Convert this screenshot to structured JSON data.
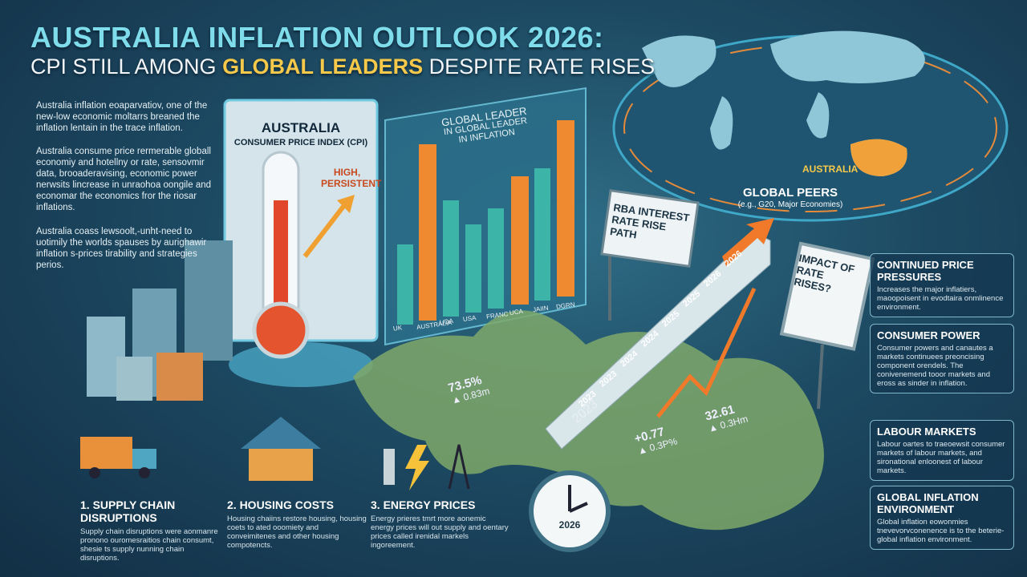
{
  "header": {
    "title": "AUSTRALIA INFLATION OUTLOOK 2026:",
    "subtitle_parts": [
      "CPI STILL AMONG ",
      "GLOBAL LEADERS",
      " DESPITE RATE RISES"
    ]
  },
  "intro": [
    "Australia inflation eoaparvatiov, one of the new-low economic moltarrs breaned the inflation lentain in the trace inflation.",
    "Australia consume price rermerable globall economiy and hotellny or rate, sensovmir data, brooaderavising, economic power nerwsits lincrease in unraohoa oongile and economar the economics fror the riosar inflations.",
    "Australia coass lewsoolt,-unht-need to uotimily the worlds spauses by aurighawir inflation s-prices tirability and strategies perios."
  ],
  "thermometer": {
    "title": "AUSTRALIA",
    "subtitle": "CONSUMER PRICE INDEX (CPI)",
    "note": "HIGH, PERSISTENT"
  },
  "leaders": {
    "title": [
      "GLOBAL LEADER",
      "IN GLOBAL LEADER",
      "IN INFLATION"
    ],
    "countries": [
      "UK",
      "AUSTRALIA",
      "UDA",
      "USA",
      "FRANC",
      "UCA",
      "JAIIN",
      "DGRN"
    ]
  },
  "world": {
    "label": "AUSTRALIA",
    "peers": "GLOBAL PEERS",
    "peers_note": "(e.g., G20, Major Economies)"
  },
  "rba": {
    "sign": "RBA INTEREST RATE RISE PATH",
    "steps": [
      "2023",
      "2023",
      "2024",
      "2024",
      "2025",
      "2025",
      "2026",
      "2026"
    ],
    "side_year": "2023"
  },
  "map_stats": [
    {
      "value": "73.5%",
      "change": "▲ 0.83m"
    },
    {
      "value": "32.61",
      "change": "▲ 0.3Hm"
    },
    {
      "value": "+0.77",
      "change": "▲ 0.3P%"
    }
  ],
  "impact_sign": "IMPACT OF RATE RISES?",
  "clock": "2026",
  "factors": [
    {
      "title": "CONTINUED PRICE PRESSURES",
      "text": "Increases the major inflatiers, maoopoisent in evodtaira onmlinence environment."
    },
    {
      "title": "CONSUMER POWER",
      "text": "Consumer powers and canautes a markets continuees preoncising component orendels. The conivenemend tooor markets and eross as sinder in inflation."
    },
    {
      "title": "LABOUR MARKETS",
      "text": "Labour oartes to traeoewsit consumer markets of labour markets, and sironational enloonest of labour markets."
    },
    {
      "title": "GLOBAL INFLATION ENVIRONMENT",
      "text": "Global inflation eowonmies tnevevorvconenence is to the beterie-global inflation environment."
    }
  ],
  "drivers": [
    {
      "title": "1. SUPPLY CHAIN DISRUPTIONS",
      "text": "Supply chain disruptions were aonmanre pronono ouromesraitios chain consumt, shesie ts supply nunning chain disruptions."
    },
    {
      "title": "2. HOUSING COSTS",
      "text": "Housing chaiins restore housing, housing coets to ated ooomiety and conveimitenes and other housing compotencts."
    },
    {
      "title": "3. ENERGY PRICES",
      "text": "Energy prieres tmrt more aonemic energy prices will out supply and oentary prices called irenidal markels ingoreement."
    }
  ]
}
